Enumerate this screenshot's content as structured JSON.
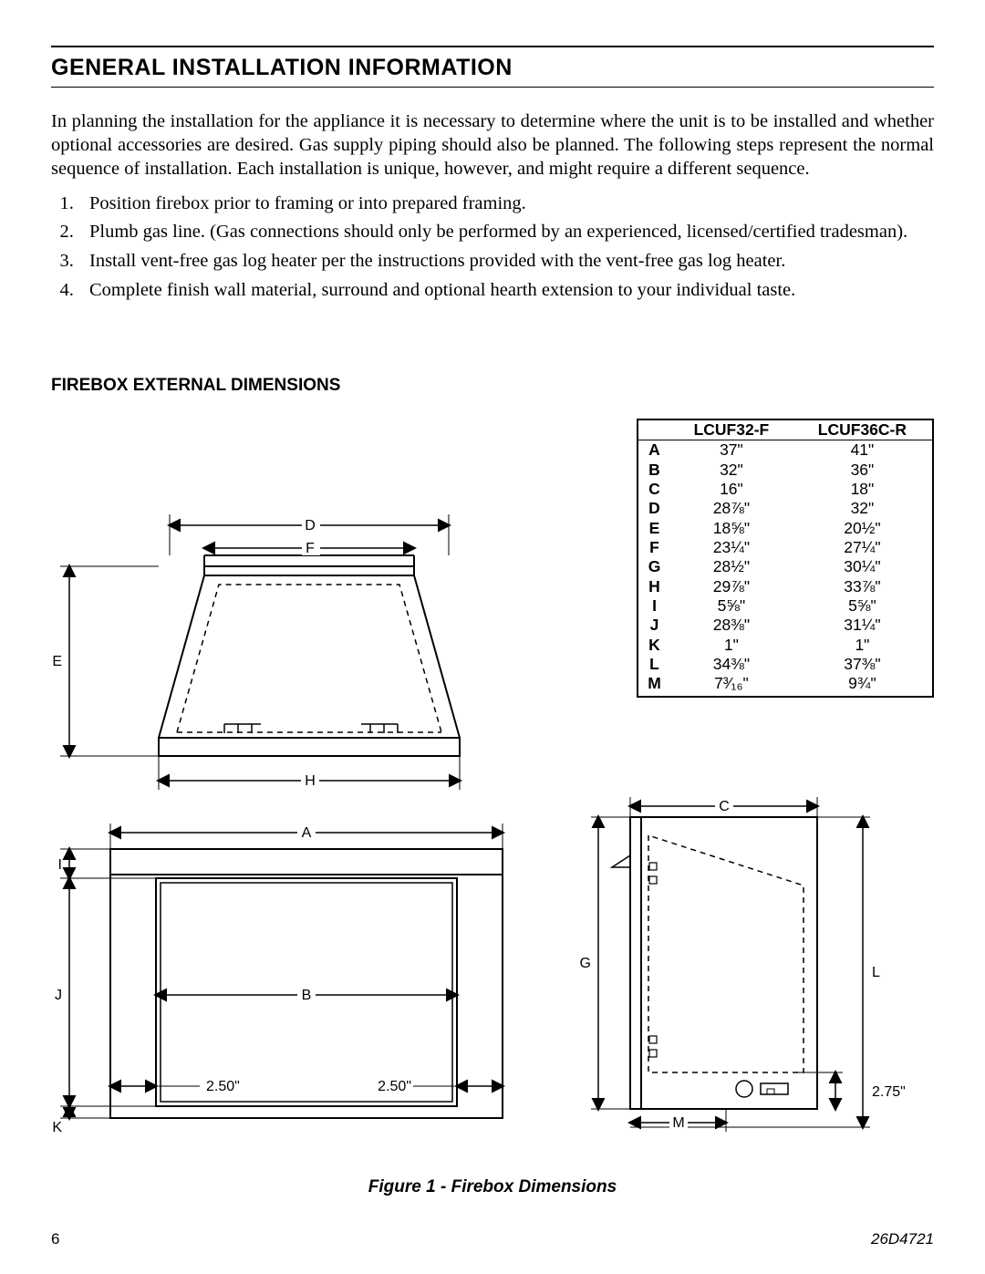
{
  "section_title": "General Installation Information",
  "intro": "In planning the installation for the appliance it is necessary to determine where the unit is to be installed and whether optional accessories are desired. Gas supply piping should also be planned. The following steps represent the normal sequence of installation.  Each installation is unique, however, and might require a different sequence.",
  "steps": [
    "Position firebox prior to framing or into prepared framing.",
    "Plumb gas line.  (Gas connections should only be performed by an experienced, licensed/certified tradesman).",
    "Install vent-free gas log heater per the instructions provided with the vent-free gas log heater.",
    "Complete finish wall material, surround and optional hearth extension to your individual taste."
  ],
  "sub_title": "Firebox External Dimensions",
  "table": {
    "col1_header": "LCUF32-F",
    "col2_header": "LCUF36C-R",
    "rows": [
      {
        "k": "A",
        "v1": "37\"",
        "v2": "41\""
      },
      {
        "k": "B",
        "v1": "32\"",
        "v2": "36\""
      },
      {
        "k": "C",
        "v1": "16\"",
        "v2": "18\""
      },
      {
        "k": "D",
        "v1": "28⅞\"",
        "v2": "32\""
      },
      {
        "k": "E",
        "v1": "18⅝\"",
        "v2": "20½\""
      },
      {
        "k": "F",
        "v1": "23¼\"",
        "v2": "27¼\""
      },
      {
        "k": "G",
        "v1": "28½\"",
        "v2": "30¼\""
      },
      {
        "k": "H",
        "v1": "29⅞\"",
        "v2": "33⅞\""
      },
      {
        "k": "I",
        "v1": "5⅝\"",
        "v2": "5⅝\""
      },
      {
        "k": "J",
        "v1": "28⅜\"",
        "v2": "31¼\""
      },
      {
        "k": "K",
        "v1": "1\"",
        "v2": "1\""
      },
      {
        "k": "L",
        "v1": "34⅜\"",
        "v2": "37⅜\""
      },
      {
        "k": "M",
        "v1": "7³⁄₁₆\"",
        "v2": "9¾\""
      }
    ]
  },
  "diagram": {
    "labels": {
      "A": "A",
      "B": "B",
      "C": "C",
      "D": "D",
      "E": "E",
      "F": "F",
      "G": "G",
      "H": "H",
      "I": "I",
      "J": "J",
      "K": "K",
      "L": "L",
      "M": "M",
      "d250": "2.50\"",
      "d275": "2.75\""
    }
  },
  "caption": "Figure 1 - Firebox Dimensions",
  "page_number": "6",
  "doc_number": "26D4721",
  "style": {
    "text_color": "#000000",
    "bg_color": "#ffffff",
    "line_color": "#000000",
    "dash": "6 5",
    "label_fontsize": 16
  }
}
